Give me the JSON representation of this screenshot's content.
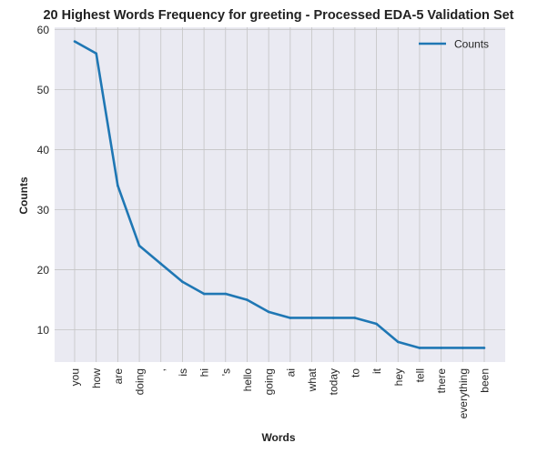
{
  "chart_data": {
    "type": "line",
    "title": "20 Highest Words Frequency for greeting - Processed EDA-5 Validation Set",
    "xlabel": "Words",
    "ylabel": "Counts",
    "categories": [
      "you",
      "how",
      "are",
      "doing",
      ",",
      "is",
      "hi",
      "'s",
      "hello",
      "going",
      "ai",
      "what",
      "today",
      "to",
      "it",
      "hey",
      "tell",
      "there",
      "everything",
      "been"
    ],
    "series": [
      {
        "name": "Counts",
        "values": [
          58,
          56,
          34,
          24,
          21,
          18,
          16,
          16,
          15,
          13,
          12,
          12,
          12,
          12,
          11,
          8,
          7,
          7,
          7,
          7
        ],
        "color": "#1f77b4"
      }
    ],
    "ylim": [
      4.65,
      60.35
    ],
    "yticks": [
      10,
      20,
      30,
      40,
      50,
      60
    ],
    "grid": true,
    "legend_position": "top-right",
    "style": {
      "plot_background": "#eaeaf2",
      "grid_color": "#c4c4c4"
    }
  }
}
